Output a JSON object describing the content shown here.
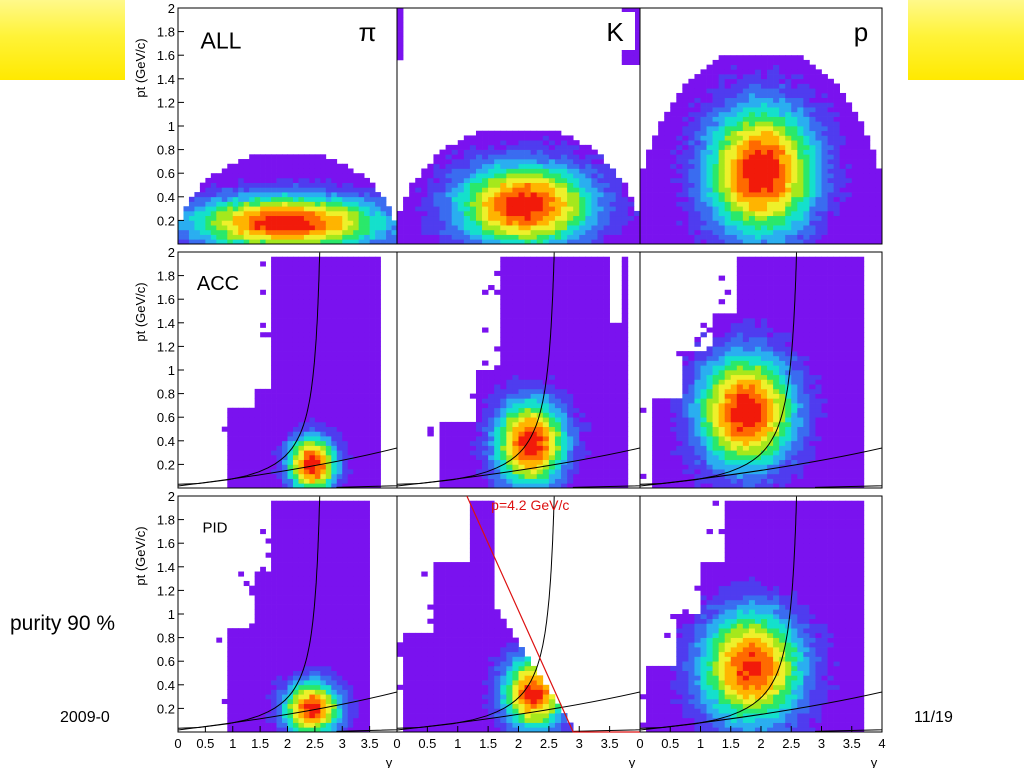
{
  "slide": {
    "purity_text": "purity 90 %",
    "date_text": "2009-0",
    "page_text": "11/19",
    "band_color": "#fff338"
  },
  "chart_data": {
    "type": "heatmap",
    "columns": [
      {
        "particle": "π"
      },
      {
        "particle": "K"
      },
      {
        "particle": "p"
      }
    ],
    "rows": [
      {
        "label": "ALL"
      },
      {
        "label": "ACC"
      },
      {
        "label": "PID"
      }
    ],
    "xlabel": "y",
    "ylabel": "p_t (GeV/c)",
    "xlim": [
      0,
      4
    ],
    "ylim": [
      0,
      2
    ],
    "x_ticks": [
      "0",
      "0.5",
      "1",
      "1.5",
      "2",
      "2.5",
      "3",
      "3.5",
      "4"
    ],
    "y_ticks": [
      "0.2",
      "0.4",
      "0.6",
      "0.8",
      "1",
      "1.2",
      "1.4",
      "1.6",
      "1.8",
      "2"
    ],
    "annotation": {
      "text": "p=4.2 GeV/c",
      "color": "#dd1111",
      "panel": "PID K"
    },
    "colormap": [
      "#7a12ef",
      "#4f3cef",
      "#3a6cf0",
      "#2aaef0",
      "#14e0cc",
      "#2ae86a",
      "#a5e81c",
      "#eef02a",
      "#ffb400",
      "#ff6a00",
      "#f21a0a"
    ]
  }
}
